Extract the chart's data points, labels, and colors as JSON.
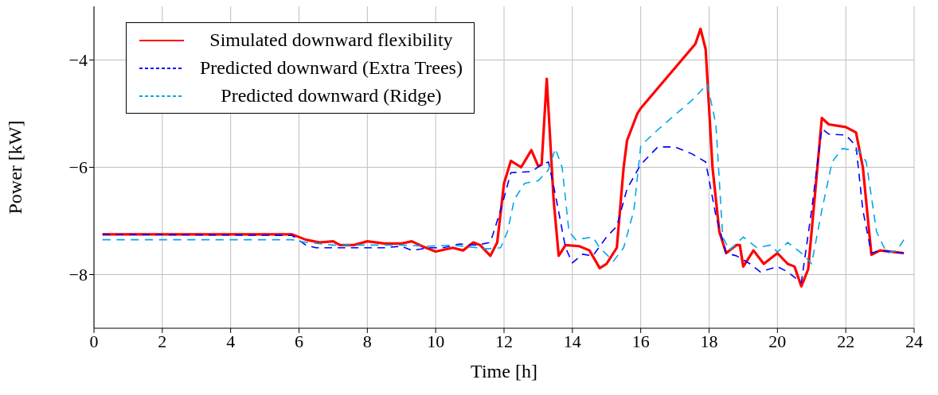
{
  "chart_data": {
    "type": "line",
    "xlabel": "Time [h]",
    "ylabel": "Power [kW]",
    "xlim": [
      0,
      24
    ],
    "xticks": [
      0,
      2,
      4,
      6,
      8,
      10,
      12,
      14,
      16,
      18,
      20,
      22,
      24
    ],
    "ylim": [
      -9,
      -3
    ],
    "yticks": [
      {
        "value": -8,
        "label": "−8"
      },
      {
        "value": -6,
        "label": "−6"
      },
      {
        "value": -4,
        "label": "−4"
      }
    ],
    "grid": true,
    "legend": "top left",
    "marker": "none",
    "series": [
      {
        "name": "Simulated downward flexibility",
        "color": "#ff0000",
        "line_style": "solid",
        "x": [
          0.25,
          5.8,
          6.2,
          6.6,
          7.0,
          7.2,
          7.6,
          8.0,
          8.5,
          9.0,
          9.3,
          9.6,
          10.0,
          10.5,
          10.8,
          11.1,
          11.3,
          11.6,
          11.8,
          12.0,
          12.2,
          12.5,
          12.8,
          13.0,
          13.1,
          13.25,
          13.45,
          13.6,
          13.8,
          14.2,
          14.5,
          14.8,
          15.0,
          15.3,
          15.5,
          15.6,
          15.9,
          16.0,
          17.6,
          17.75,
          17.9,
          18.1,
          18.3,
          18.5,
          18.8,
          18.9,
          19.0,
          19.3,
          19.6,
          20.0,
          20.3,
          20.5,
          20.7,
          20.9,
          21.1,
          21.3,
          21.5,
          22.0,
          22.3,
          22.5,
          22.75,
          23.0,
          23.7
        ],
        "values": [
          -7.25,
          -7.25,
          -7.35,
          -7.4,
          -7.38,
          -7.45,
          -7.45,
          -7.38,
          -7.42,
          -7.42,
          -7.38,
          -7.47,
          -7.57,
          -7.5,
          -7.55,
          -7.4,
          -7.45,
          -7.65,
          -7.4,
          -6.3,
          -5.88,
          -6.0,
          -5.68,
          -5.98,
          -5.95,
          -4.35,
          -6.6,
          -7.65,
          -7.45,
          -7.47,
          -7.55,
          -7.88,
          -7.8,
          -7.5,
          -6.0,
          -5.5,
          -5.0,
          -4.9,
          -3.7,
          -3.42,
          -3.8,
          -6.0,
          -7.2,
          -7.6,
          -7.45,
          -7.45,
          -7.85,
          -7.55,
          -7.8,
          -7.6,
          -7.8,
          -7.85,
          -8.22,
          -7.9,
          -6.5,
          -5.08,
          -5.2,
          -5.25,
          -5.35,
          -6.0,
          -7.63,
          -7.55,
          -7.6
        ]
      },
      {
        "name": "Predicted downward (Extra Trees)",
        "color": "#0000ff",
        "line_style": "dashed",
        "x": [
          0.25,
          5.8,
          6.2,
          6.5,
          7.5,
          8.5,
          9.0,
          9.3,
          9.8,
          10.2,
          10.7,
          11.2,
          11.6,
          11.9,
          12.2,
          12.8,
          13.1,
          13.3,
          13.5,
          13.8,
          14.0,
          14.3,
          14.6,
          15.0,
          15.3,
          15.6,
          16.0,
          16.5,
          17.0,
          17.5,
          17.9,
          18.2,
          18.5,
          18.8,
          19.2,
          19.5,
          20.0,
          20.3,
          20.7,
          21.0,
          21.3,
          21.5,
          22.0,
          22.3,
          22.5,
          22.75,
          23.0,
          23.7
        ],
        "values": [
          -7.25,
          -7.27,
          -7.45,
          -7.5,
          -7.5,
          -7.5,
          -7.47,
          -7.55,
          -7.5,
          -7.5,
          -7.43,
          -7.45,
          -7.4,
          -6.8,
          -6.1,
          -6.08,
          -5.95,
          -5.9,
          -6.5,
          -7.5,
          -7.78,
          -7.62,
          -7.65,
          -7.3,
          -7.1,
          -6.4,
          -5.95,
          -5.62,
          -5.62,
          -5.75,
          -5.9,
          -6.9,
          -7.6,
          -7.65,
          -7.8,
          -7.95,
          -7.85,
          -7.95,
          -8.15,
          -6.8,
          -5.28,
          -5.38,
          -5.4,
          -5.6,
          -6.8,
          -7.6,
          -7.55,
          -7.6
        ]
      },
      {
        "name": "Predicted downward (Ridge)",
        "color": "#00a8e8",
        "line_style": "dashed",
        "x": [
          0.25,
          5.8,
          6.2,
          7.0,
          8.0,
          9.0,
          9.8,
          10.5,
          11.5,
          11.9,
          12.1,
          12.3,
          12.6,
          13.0,
          13.3,
          13.5,
          13.7,
          13.9,
          14.1,
          14.6,
          14.8,
          15.2,
          15.5,
          15.8,
          16.0,
          16.5,
          17.5,
          17.95,
          18.2,
          18.4,
          18.6,
          19.0,
          19.4,
          19.8,
          20.0,
          20.3,
          20.8,
          21.0,
          21.3,
          21.6,
          21.9,
          22.4,
          22.6,
          22.9,
          23.2,
          23.5,
          23.7
        ],
        "values": [
          -7.35,
          -7.35,
          -7.4,
          -7.45,
          -7.45,
          -7.45,
          -7.47,
          -7.45,
          -7.52,
          -7.5,
          -7.2,
          -6.6,
          -6.3,
          -6.25,
          -6.05,
          -5.65,
          -6.0,
          -7.2,
          -7.35,
          -7.3,
          -7.5,
          -7.75,
          -7.5,
          -6.8,
          -5.6,
          -5.3,
          -4.75,
          -4.45,
          -5.2,
          -7.3,
          -7.55,
          -7.3,
          -7.5,
          -7.45,
          -7.58,
          -7.4,
          -7.65,
          -7.8,
          -6.8,
          -5.9,
          -5.65,
          -5.7,
          -5.9,
          -7.2,
          -7.6,
          -7.55,
          -7.35
        ]
      }
    ]
  }
}
